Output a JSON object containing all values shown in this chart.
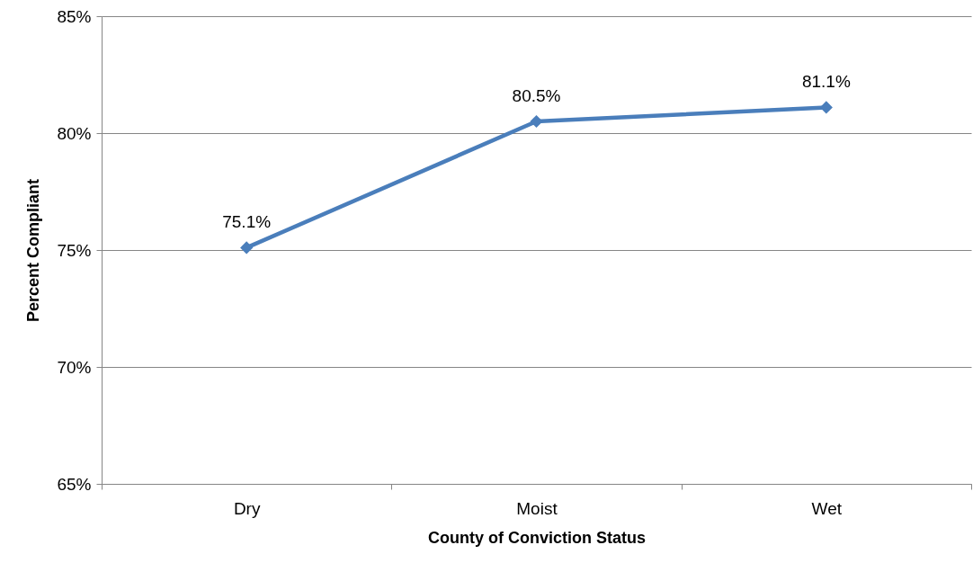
{
  "chart_data": {
    "type": "line",
    "xlabel": "County of Conviction Status",
    "ylabel": "Percent Compliant",
    "categories": [
      "Dry",
      "Moist",
      "Wet"
    ],
    "series": [
      {
        "color": "#4a7ebb",
        "values": [
          75.1,
          80.5,
          81.1
        ],
        "value_labels": [
          "75.1%",
          "80.5%",
          "81.1%"
        ]
      }
    ],
    "ylim": [
      65,
      85
    ],
    "yticks": [
      {
        "value": 65,
        "label": "65%"
      },
      {
        "value": 70,
        "label": "70%"
      },
      {
        "value": 75,
        "label": "75%"
      },
      {
        "value": 80,
        "label": "80%"
      },
      {
        "value": 85,
        "label": "85%"
      }
    ],
    "grid": "y",
    "marker": "diamond",
    "line_style": "solid"
  }
}
